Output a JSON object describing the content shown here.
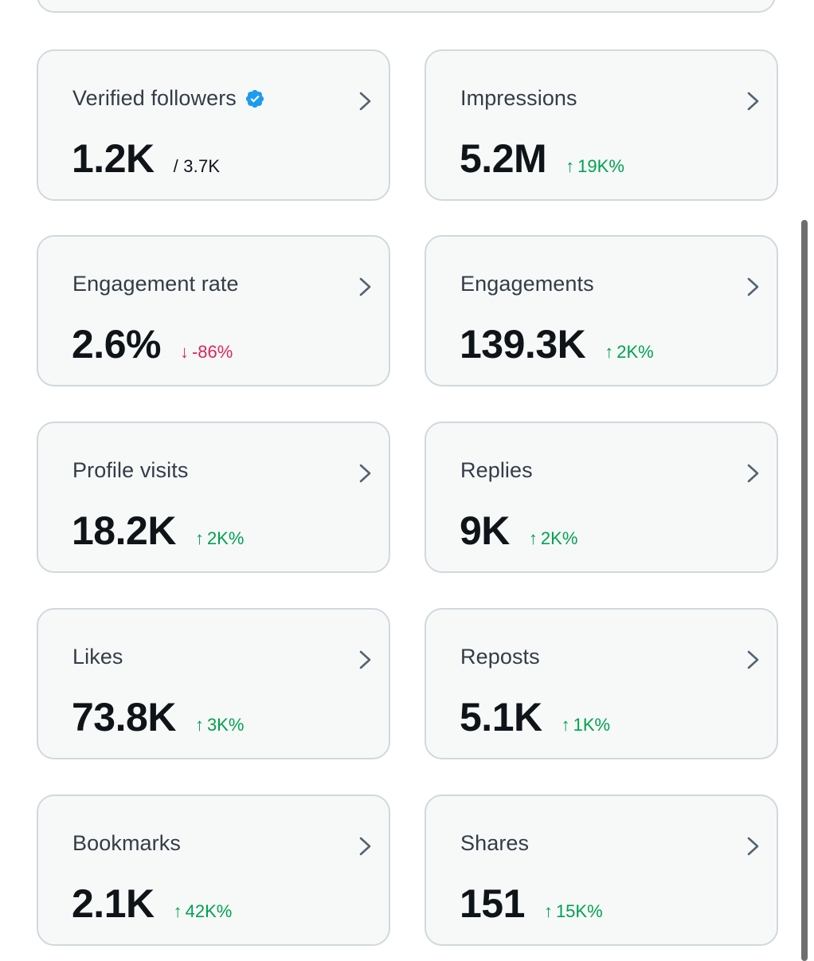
{
  "metrics": [
    {
      "label": "Verified followers",
      "value": "1.2K",
      "sub": "/ 3.7K",
      "verified": true
    },
    {
      "label": "Impressions",
      "value": "5.2M",
      "delta": "19K%",
      "direction": "up"
    },
    {
      "label": "Engagement rate",
      "value": "2.6%",
      "delta": "-86%",
      "direction": "down"
    },
    {
      "label": "Engagements",
      "value": "139.3K",
      "delta": "2K%",
      "direction": "up"
    },
    {
      "label": "Profile visits",
      "value": "18.2K",
      "delta": "2K%",
      "direction": "up"
    },
    {
      "label": "Replies",
      "value": "9K",
      "delta": "2K%",
      "direction": "up"
    },
    {
      "label": "Likes",
      "value": "73.8K",
      "delta": "3K%",
      "direction": "up"
    },
    {
      "label": "Reposts",
      "value": "5.1K",
      "delta": "1K%",
      "direction": "up"
    },
    {
      "label": "Bookmarks",
      "value": "2.1K",
      "delta": "42K%",
      "direction": "up"
    },
    {
      "label": "Shares",
      "value": "151",
      "delta": "15K%",
      "direction": "up"
    }
  ],
  "icons": {
    "chevron": "chevron-right-icon",
    "verified": "verified-badge-icon",
    "up": "↑",
    "down": "↓"
  },
  "colors": {
    "positive": "#00a24f",
    "negative": "#e0245e",
    "verified": "#1d9bf0",
    "card_border": "#cfd9de",
    "card_bg": "#f7f9f9"
  }
}
